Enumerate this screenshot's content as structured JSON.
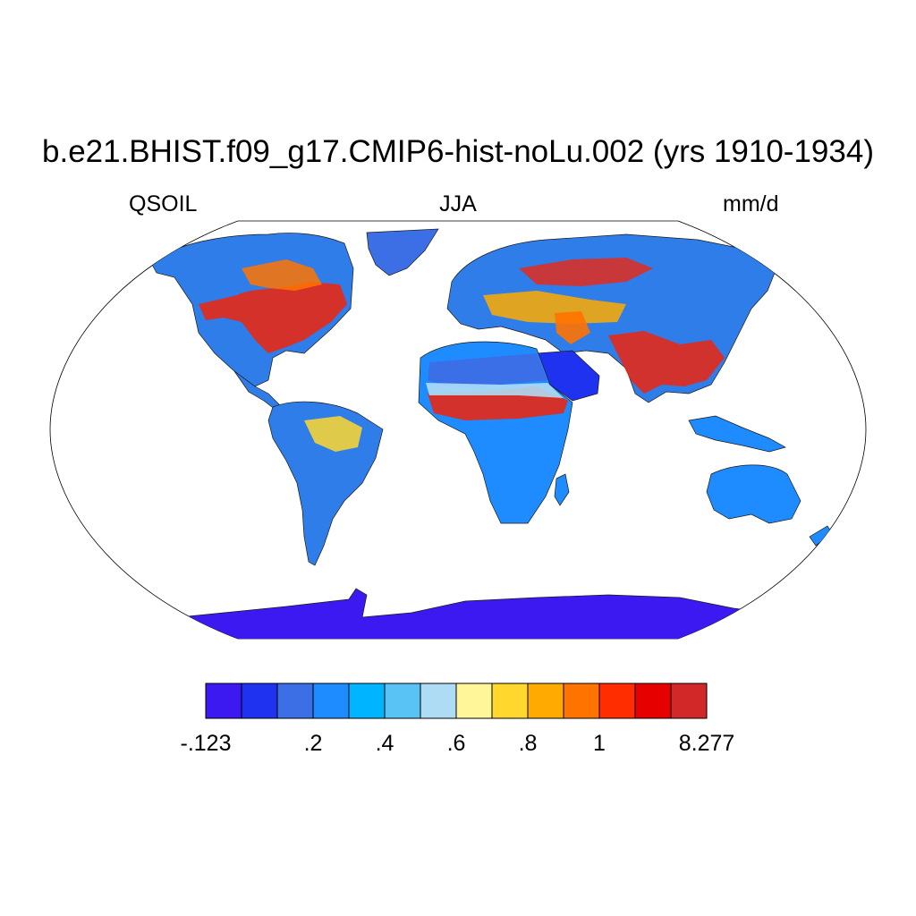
{
  "title": "b.e21.BHIST.f09_g17.CMIP6-hist-noLu.002 (yrs 1910-1934)",
  "left_string": "QSOIL",
  "center_string": "JJA",
  "right_string": "mm/d",
  "projection": "Robinson",
  "colorbar": {
    "colors": [
      "#3c19f0",
      "#1e32f0",
      "#3c6ee6",
      "#1e8cff",
      "#00b4ff",
      "#5ac3f5",
      "#afdcf5",
      "#fff599",
      "#ffd72d",
      "#ffaa00",
      "#ff7300",
      "#ff2d00",
      "#e60000",
      "#d22828"
    ],
    "labels": [
      {
        "text": "-.123",
        "boundary": 0
      },
      {
        "text": ".2",
        "boundary": 3
      },
      {
        "text": ".4",
        "boundary": 5
      },
      {
        "text": ".6",
        "boundary": 7
      },
      {
        "text": ".8",
        "boundary": 9
      },
      {
        "text": "1",
        "boundary": 11
      },
      {
        "text": "8.277",
        "boundary": 14
      }
    ]
  }
}
